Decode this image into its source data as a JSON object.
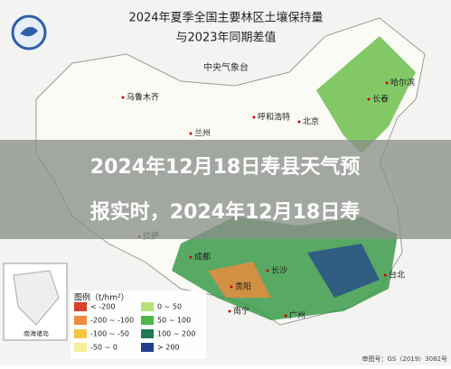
{
  "header": {
    "title_line1": "2024年夏季全国主要林区土壤保持量",
    "title_line2": "与2023年同期差值",
    "agency": "中央气象台"
  },
  "cities": [
    {
      "label": "乌鲁木齐"
    },
    {
      "label": "呼和浩特"
    },
    {
      "label": "哈尔滨"
    },
    {
      "label": "长春"
    },
    {
      "label": "北京"
    },
    {
      "label": "兰州"
    },
    {
      "label": "拉萨"
    },
    {
      "label": "成都"
    },
    {
      "label": "贵阳"
    },
    {
      "label": "南宁"
    },
    {
      "label": "广州"
    },
    {
      "label": "台北"
    },
    {
      "label": "长沙"
    }
  ],
  "legend": {
    "title": "图例（t/hm²）",
    "items": [
      {
        "label": "< -200",
        "color": "#d9412b"
      },
      {
        "label": "-200 ~ -100",
        "color": "#f08a3c"
      },
      {
        "label": "-100 ~ -50",
        "color": "#f5c542"
      },
      {
        "label": "-50 ~ 0",
        "color": "#f6ef9a"
      },
      {
        "label": "0 ~ 50",
        "color": "#b7e07a"
      },
      {
        "label": "50 ~ 100",
        "color": "#4cb848"
      },
      {
        "label": "100 ~ 200",
        "color": "#1d7a55"
      },
      {
        "label": "> 200",
        "color": "#1f3f8f"
      }
    ]
  },
  "inset": "南海诸岛",
  "approval": "审图号：GS（2019）3082号",
  "overlay": {
    "line1": "2024年12月18日寿县天气预",
    "line2": "报实时，2024年12月18日寿"
  }
}
